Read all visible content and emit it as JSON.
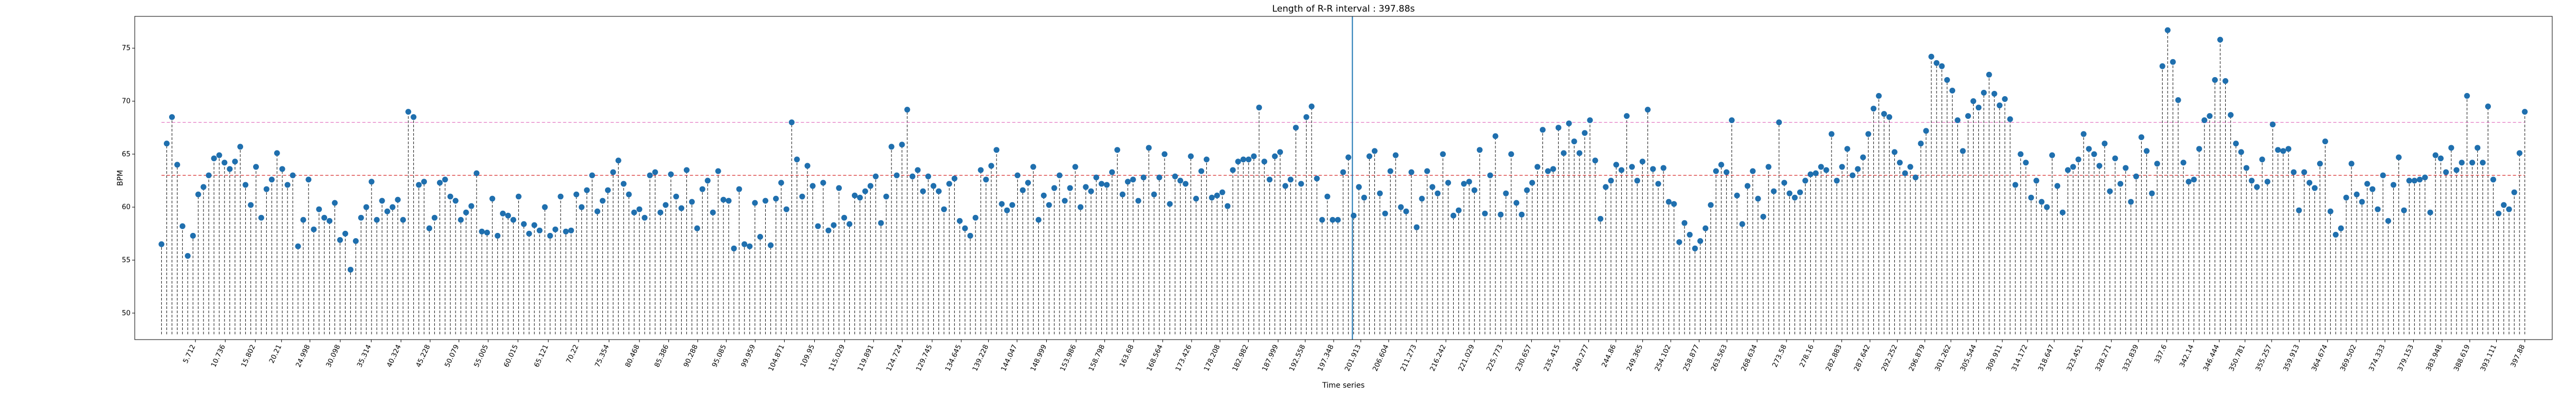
{
  "chart_data": {
    "type": "stem",
    "title": "Length of R-R interval : 397.88s",
    "xlabel": "Time series",
    "ylabel": "BPM",
    "ylim": [
      47.5,
      78
    ],
    "yticks": [
      50,
      55,
      60,
      65,
      70,
      75
    ],
    "baseline": 48,
    "xlim": [
      -4.5,
      402.5
    ],
    "x_ticks": [
      5.712,
      10.736,
      15.802,
      20.21,
      24.998,
      30.098,
      35.314,
      40.324,
      45.228,
      50.079,
      55.005,
      60.015,
      65.121,
      70.22,
      75.354,
      80.468,
      85.386,
      90.288,
      95.085,
      99.959,
      104.871,
      109.95,
      115.029,
      119.891,
      124.724,
      129.745,
      134.645,
      139.228,
      144.047,
      148.999,
      153.986,
      158.798,
      163.68,
      168.564,
      173.426,
      178.208,
      182.982,
      187.999,
      192.558,
      197.348,
      201.913,
      206.604,
      211.273,
      216.242,
      221.029,
      225.773,
      230.657,
      235.415,
      240.277,
      244.86,
      249.365,
      254.102,
      258.877,
      263.563,
      268.634,
      273.58,
      278.16,
      282.883,
      287.642,
      292.252,
      296.879,
      301.262,
      305.544,
      309.911,
      314.172,
      318.647,
      323.451,
      328.271,
      332.839,
      337.6,
      342.14,
      346.444,
      350.781,
      355.257,
      359.913,
      364.674,
      369.502,
      374.333,
      379.153,
      383.948,
      388.619,
      393.111,
      397.88
    ],
    "vline_x": 200.5,
    "hlines": [
      {
        "y": 63.0,
        "color": "#d62728",
        "style": "dashed"
      },
      {
        "y": 68.0,
        "color": "#e377c2",
        "style": "dashed"
      }
    ],
    "values": [
      56.5,
      66.0,
      68.5,
      64.0,
      58.2,
      55.4,
      57.3,
      61.2,
      61.9,
      63.0,
      64.6,
      64.9,
      64.2,
      63.6,
      64.3,
      65.7,
      62.1,
      60.2,
      63.8,
      59.0,
      61.7,
      62.6,
      65.1,
      63.6,
      62.1,
      63.0,
      56.3,
      58.8,
      62.6,
      57.9,
      59.8,
      59.0,
      58.7,
      60.4,
      56.9,
      57.5,
      54.1,
      56.8,
      59.0,
      60.0,
      62.4,
      58.8,
      60.6,
      59.6,
      60.0,
      60.7,
      58.8,
      69.0,
      68.5,
      62.1,
      62.4,
      58.0,
      59.0,
      62.3,
      62.6,
      61.0,
      60.6,
      58.8,
      59.5,
      60.1,
      63.2,
      57.7,
      57.6,
      60.8,
      57.3,
      59.4,
      59.2,
      58.8,
      61.0,
      58.4,
      57.5,
      58.3,
      57.8,
      60.0,
      57.3,
      57.9,
      61.0,
      57.7,
      57.8,
      61.2,
      60.0,
      61.6,
      63.0,
      59.6,
      60.6,
      61.6,
      63.3,
      64.4,
      62.2,
      61.2,
      59.5,
      59.8,
      59.0,
      63.0,
      63.3,
      59.5,
      60.2,
      63.1,
      61.0,
      59.9,
      63.5,
      60.5,
      58.0,
      61.7,
      62.5,
      59.5,
      63.4,
      60.7,
      60.6,
      56.1,
      61.7,
      56.5,
      56.3,
      60.4,
      57.2,
      60.6,
      56.4,
      60.8,
      62.3,
      59.8,
      68.0,
      64.5,
      61.0,
      63.9,
      62.0,
      58.2,
      62.3,
      57.8,
      58.3,
      61.8,
      59.0,
      58.4,
      61.1,
      60.9,
      61.5,
      62.0,
      62.9,
      58.5,
      61.0,
      65.7,
      63.0,
      65.9,
      69.2,
      62.9,
      63.5,
      61.5,
      62.9,
      62.0,
      61.5,
      59.8,
      62.2,
      62.7,
      58.7,
      58.0,
      57.3,
      59.0,
      63.5,
      62.6,
      63.9,
      65.4,
      60.3,
      59.7,
      60.2,
      63.0,
      61.6,
      62.3,
      63.8,
      58.8,
      61.1,
      60.2,
      61.8,
      63.0,
      60.6,
      61.8,
      63.8,
      60.0,
      61.9,
      61.5,
      62.8,
      62.2,
      62.1,
      63.3,
      65.4,
      61.2,
      62.4,
      62.6,
      60.6,
      62.8,
      65.6,
      61.2,
      62.8,
      65.0,
      60.3,
      62.9,
      62.5,
      62.2,
      64.8,
      60.8,
      63.4,
      64.5,
      60.9,
      61.1,
      61.4,
      60.1,
      63.5,
      64.3,
      64.5,
      64.5,
      64.8,
      69.4,
      64.3,
      62.6,
      64.8,
      65.2,
      62.0,
      62.6,
      67.5,
      62.2,
      68.5,
      69.5,
      62.7,
      58.8,
      61.0,
      58.8,
      58.8,
      63.3,
      64.7,
      59.2,
      61.9,
      60.9,
      64.8,
      65.3,
      61.3,
      59.4,
      63.4,
      64.9,
      60.0,
      59.6,
      63.3,
      58.1,
      60.8,
      63.4,
      61.9,
      61.3,
      65.0,
      62.3,
      59.2,
      59.7,
      62.2,
      62.4,
      61.6,
      65.4,
      59.4,
      63.0,
      66.7,
      59.3,
      61.3,
      65.0,
      60.4,
      59.3,
      61.6,
      62.3,
      63.8,
      67.3,
      63.4,
      63.6,
      67.5,
      65.1,
      67.9,
      66.2,
      65.1,
      67.0,
      68.2,
      64.4,
      58.9,
      61.9,
      62.5,
      64.0,
      63.5,
      68.6,
      63.8,
      62.5,
      64.3,
      69.2,
      63.6,
      62.2,
      63.7,
      60.5,
      60.3,
      56.7,
      58.5,
      57.4,
      56.1,
      56.8,
      58.0,
      60.2,
      63.4,
      64.0,
      63.3,
      68.2,
      61.1,
      58.4,
      62.0,
      63.4,
      60.8,
      59.1,
      63.8,
      61.5,
      68.0,
      62.3,
      61.3,
      60.9,
      61.4,
      62.5,
      63.1,
      63.2,
      63.8,
      63.5,
      66.9,
      62.5,
      63.8,
      65.5,
      63.0,
      63.6,
      64.7,
      66.9,
      69.3,
      70.5,
      68.8,
      68.5,
      65.2,
      64.2,
      63.2,
      63.8,
      62.8,
      66.0,
      67.2,
      74.2,
      73.6,
      73.3,
      72.0,
      71.0,
      68.2,
      65.3,
      68.6,
      70.0,
      69.4,
      70.8,
      72.5,
      70.7,
      69.6,
      70.2,
      68.3,
      62.1,
      65.0,
      64.2,
      60.9,
      62.5,
      60.5,
      60.0,
      64.9,
      62.0,
      59.5,
      63.5,
      63.8,
      64.5,
      66.9,
      65.5,
      65.0,
      63.9,
      66.0,
      61.5,
      64.6,
      62.2,
      63.7,
      60.5,
      62.9,
      66.6,
      65.3,
      61.3,
      64.1,
      73.3,
      76.7,
      73.7,
      70.1,
      64.2,
      62.4,
      62.6,
      65.5,
      68.2,
      68.6,
      72.0,
      75.8,
      71.9,
      68.7,
      66.0,
      65.2,
      63.7,
      62.5,
      61.9,
      64.5,
      62.4,
      67.8,
      65.4,
      65.3,
      65.5,
      63.3,
      59.7,
      63.3,
      62.3,
      61.8,
      64.1,
      66.2,
      59.6,
      57.4,
      58.0,
      60.9,
      64.1,
      61.2,
      60.5,
      62.2,
      61.7,
      59.8,
      63.0,
      58.7,
      62.1,
      64.7,
      59.7,
      62.5,
      62.5,
      62.6,
      62.8,
      59.5,
      64.9,
      64.6,
      63.3,
      65.6,
      63.5,
      64.2,
      70.5,
      64.2,
      65.6,
      64.2,
      69.5,
      62.6,
      59.4,
      60.2,
      59.8,
      61.4,
      65.1,
      69.0
    ]
  }
}
